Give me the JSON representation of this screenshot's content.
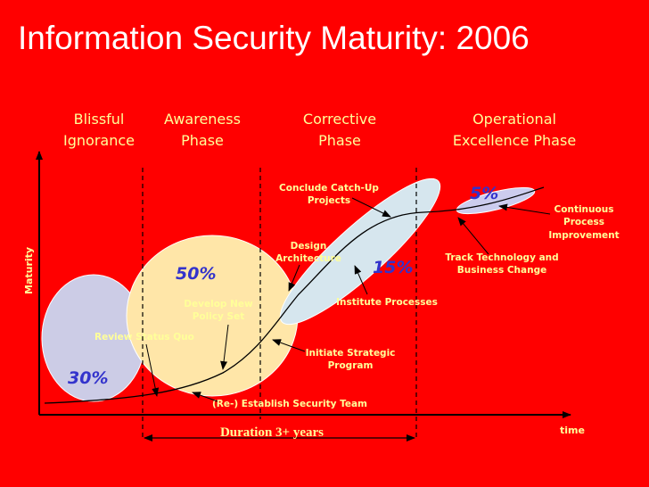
{
  "title": "Information Security Maturity: 2006",
  "phases": [
    {
      "line1": "Blissful",
      "line2": "Ignorance"
    },
    {
      "line1": "Awareness",
      "line2": "Phase"
    },
    {
      "line1": "Corrective",
      "line2": "Phase"
    },
    {
      "line1": "Operational",
      "line2": "Excellence Phase"
    }
  ],
  "percentages": {
    "blissful": "30%",
    "awareness": "50%",
    "corrective": "15%",
    "operational": "5%"
  },
  "annotations": {
    "review_status_quo": "Review Status Quo",
    "develop_policy_1": "Develop New",
    "develop_policy_2": "Policy Set",
    "establish_team": "(Re-) Establish Security Team",
    "initiate_program_1": "Initiate Strategic",
    "initiate_program_2": "Program",
    "institute_processes": "Institute Processes",
    "design_arch_1": "Design",
    "design_arch_2": "Architecture",
    "catchup_1": "Conclude Catch-Up",
    "catchup_2": "Projects",
    "track_tech_1": "Track Technology and",
    "track_tech_2": "Business Change",
    "continuous_1": "Continuous",
    "continuous_2": "Process",
    "continuous_3": "Improvement"
  },
  "axes": {
    "y_label": "Maturity",
    "x_label": "time"
  },
  "duration": "Duration 3+ years",
  "colors": {
    "background": "#ff0000",
    "blissful_blob": "#cccce6",
    "awareness_blob": "#ffe6a8",
    "corrective_blob": "#d6e6ee",
    "operational_blob": "#ccccee",
    "text": "#ffff99",
    "percent": "#3333cc"
  }
}
